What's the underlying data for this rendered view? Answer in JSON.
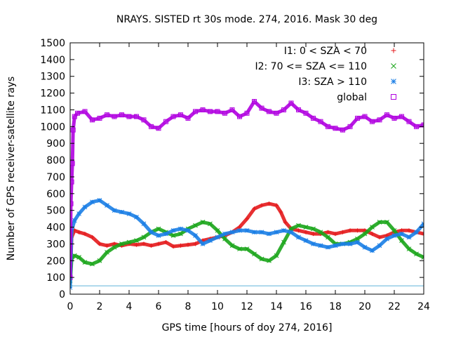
{
  "chart_data": {
    "type": "scatter",
    "title": "NRAYS. SISTED rt 30s mode. 274, 2016. Mask 30 deg",
    "xlabel": "GPS time [hours of doy 274, 2016]",
    "ylabel": "Number of GPS receiver-satellite rays",
    "xlim": [
      0,
      24
    ],
    "ylim": [
      0,
      1500
    ],
    "xticks": [
      "0",
      "2",
      "4",
      "6",
      "8",
      "10",
      "12",
      "14",
      "16",
      "18",
      "20",
      "22",
      "24"
    ],
    "yticks": [
      "0",
      "100",
      "200",
      "300",
      "400",
      "500",
      "600",
      "700",
      "800",
      "900",
      "1000",
      "1100",
      "1200",
      "1300",
      "1400",
      "1500"
    ],
    "legend_position": "top-right",
    "reference_line": {
      "y": 50,
      "color": "#5fb3d9"
    },
    "series": [
      {
        "name": "I1: 0 < SZA < 70",
        "marker": "plus",
        "color": "#e41a1c",
        "x": [
          0,
          0.1,
          0.3,
          0.6,
          1.0,
          1.5,
          2.0,
          2.5,
          3.0,
          3.5,
          4.0,
          4.5,
          5.0,
          5.5,
          6.0,
          6.5,
          7.0,
          7.5,
          8.0,
          8.5,
          9.0,
          9.5,
          10.0,
          10.5,
          11.0,
          11.5,
          12.0,
          12.5,
          13.0,
          13.5,
          14.0,
          14.3,
          14.6,
          15.0,
          15.5,
          16.0,
          16.5,
          17.0,
          17.5,
          18.0,
          18.5,
          19.0,
          19.5,
          20.0,
          20.5,
          21.0,
          21.5,
          22.0,
          22.5,
          23.0,
          23.5,
          24.0
        ],
        "values": [
          70,
          340,
          380,
          370,
          360,
          340,
          300,
          290,
          300,
          290,
          300,
          295,
          300,
          290,
          300,
          310,
          285,
          290,
          295,
          300,
          320,
          330,
          340,
          350,
          370,
          400,
          450,
          510,
          530,
          540,
          530,
          490,
          430,
          390,
          380,
          370,
          360,
          360,
          370,
          360,
          370,
          380,
          380,
          380,
          360,
          340,
          350,
          370,
          380,
          380,
          370,
          360
        ]
      },
      {
        "name": "I2: 70 <= SZA <= 110",
        "marker": "cross",
        "color": "#1aa51a",
        "x": [
          0,
          0.1,
          0.3,
          0.6,
          1.0,
          1.5,
          2.0,
          2.5,
          3.0,
          3.5,
          4.0,
          4.5,
          5.0,
          5.5,
          6.0,
          6.5,
          7.0,
          7.5,
          8.0,
          8.5,
          9.0,
          9.5,
          10.0,
          10.5,
          11.0,
          11.5,
          12.0,
          12.5,
          13.0,
          13.5,
          14.0,
          14.5,
          15.0,
          15.5,
          16.0,
          16.5,
          17.0,
          17.5,
          18.0,
          18.5,
          19.0,
          19.5,
          20.0,
          20.5,
          21.0,
          21.5,
          22.0,
          22.5,
          23.0,
          23.5,
          24.0
        ],
        "values": [
          60,
          210,
          230,
          220,
          190,
          180,
          200,
          250,
          280,
          300,
          310,
          320,
          340,
          370,
          390,
          370,
          350,
          360,
          390,
          410,
          430,
          420,
          380,
          330,
          290,
          270,
          270,
          240,
          210,
          200,
          230,
          310,
          390,
          410,
          400,
          390,
          370,
          340,
          300,
          300,
          310,
          330,
          360,
          400,
          430,
          430,
          380,
          320,
          270,
          240,
          220
        ]
      },
      {
        "name": "I3: SZA > 110",
        "marker": "star",
        "color": "#1c7fe6",
        "x": [
          0,
          0.1,
          0.3,
          0.6,
          1.0,
          1.5,
          2.0,
          2.5,
          3.0,
          3.5,
          4.0,
          4.5,
          5.0,
          5.5,
          6.0,
          6.5,
          7.0,
          7.5,
          8.0,
          8.5,
          9.0,
          9.5,
          10.0,
          10.5,
          11.0,
          11.5,
          12.0,
          12.5,
          13.0,
          13.5,
          14.0,
          14.5,
          15.0,
          15.5,
          16.0,
          16.5,
          17.0,
          17.5,
          18.0,
          18.5,
          19.0,
          19.5,
          20.0,
          20.5,
          21.0,
          21.5,
          22.0,
          22.5,
          23.0,
          23.5,
          24.0
        ],
        "values": [
          40,
          380,
          440,
          480,
          520,
          550,
          560,
          530,
          500,
          490,
          480,
          460,
          420,
          370,
          350,
          360,
          380,
          390,
          380,
          350,
          300,
          320,
          340,
          360,
          370,
          380,
          380,
          370,
          370,
          360,
          370,
          380,
          370,
          340,
          320,
          300,
          290,
          280,
          290,
          300,
          300,
          310,
          280,
          260,
          290,
          330,
          350,
          360,
          340,
          370,
          420
        ]
      },
      {
        "name": "global",
        "marker": "square",
        "color": "#b000e0",
        "x": [
          0,
          0.05,
          0.1,
          0.15,
          0.2,
          0.3,
          0.5,
          1.0,
          1.5,
          2.0,
          2.5,
          3.0,
          3.5,
          4.0,
          4.5,
          5.0,
          5.5,
          6.0,
          6.5,
          7.0,
          7.5,
          8.0,
          8.5,
          9.0,
          9.5,
          10.0,
          10.5,
          11.0,
          11.5,
          12.0,
          12.5,
          13.0,
          13.5,
          14.0,
          14.5,
          15.0,
          15.5,
          16.0,
          16.5,
          17.0,
          17.5,
          18.0,
          18.5,
          19.0,
          19.5,
          20.0,
          20.5,
          21.0,
          21.5,
          22.0,
          22.5,
          23.0,
          23.5,
          24.0
        ],
        "values": [
          100,
          540,
          670,
          780,
          980,
          1060,
          1080,
          1090,
          1040,
          1050,
          1070,
          1060,
          1070,
          1060,
          1060,
          1040,
          1000,
          990,
          1030,
          1060,
          1070,
          1050,
          1090,
          1100,
          1090,
          1090,
          1080,
          1100,
          1060,
          1080,
          1150,
          1110,
          1090,
          1080,
          1100,
          1140,
          1100,
          1080,
          1050,
          1030,
          1000,
          990,
          980,
          1000,
          1050,
          1060,
          1030,
          1040,
          1070,
          1050,
          1060,
          1030,
          1000,
          1010
        ]
      }
    ]
  }
}
